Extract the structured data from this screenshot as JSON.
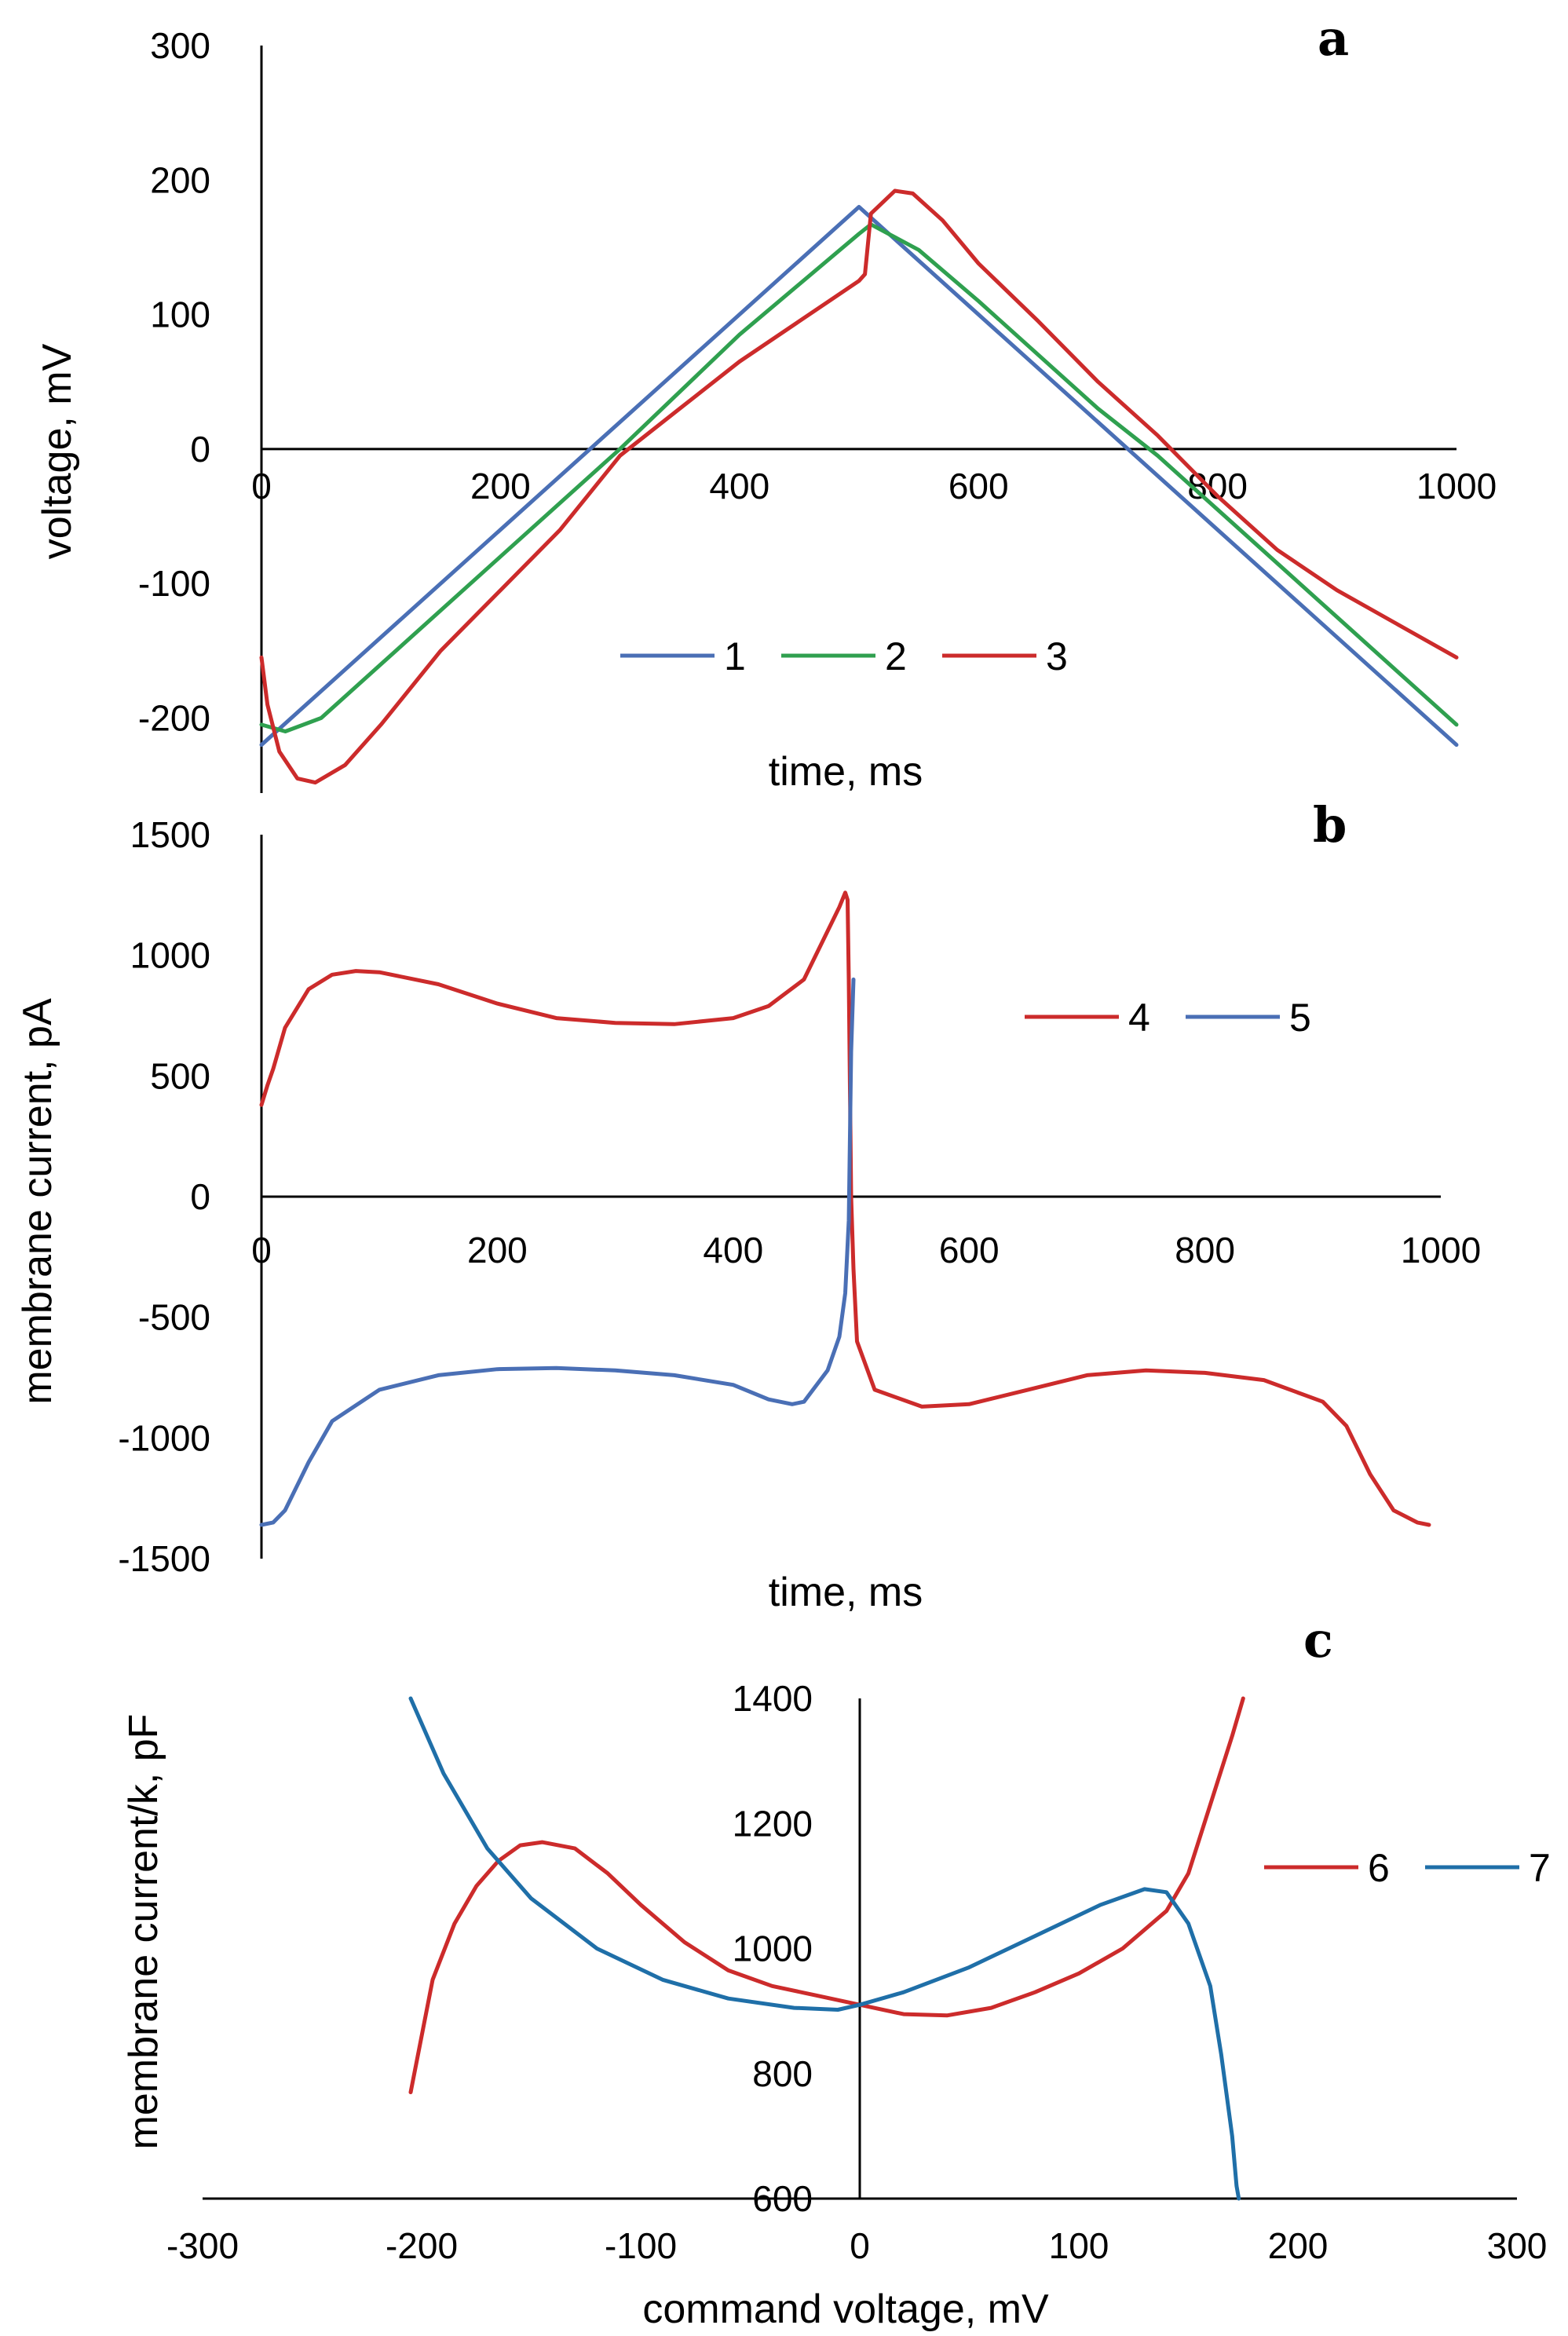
{
  "chart_data": [
    {
      "panel": "a",
      "type": "line",
      "title": "",
      "xlabel": "time, ms",
      "ylabel": "voltage, mV",
      "xlim": [
        0,
        1000
      ],
      "ylim": [
        -250,
        300
      ],
      "xticks": [
        0,
        200,
        400,
        600,
        800,
        1000
      ],
      "yticks": [
        -200,
        -100,
        0,
        100,
        200,
        300
      ],
      "xtick_labels": [
        "0",
        "200",
        "400",
        "600",
        "800",
        "1000"
      ],
      "ytick_labels": [
        "-200",
        "-100",
        "0",
        "100",
        "200",
        "300"
      ],
      "legend": "center",
      "series": [
        {
          "name": "1",
          "color": "#4a6fb5",
          "points": [
            [
              0,
              -220
            ],
            [
              500,
              180
            ],
            [
              1000,
              -220
            ]
          ]
        },
        {
          "name": "2",
          "color": "#2fa04f",
          "points": [
            [
              0,
              -205
            ],
            [
              20,
              -210
            ],
            [
              50,
              -200
            ],
            [
              100,
              -160
            ],
            [
              200,
              -80
            ],
            [
              300,
              0
            ],
            [
              400,
              85
            ],
            [
              500,
              160
            ],
            [
              510,
              167
            ],
            [
              550,
              148
            ],
            [
              600,
              110
            ],
            [
              700,
              30
            ],
            [
              750,
              -5
            ],
            [
              800,
              -45
            ],
            [
              900,
              -125
            ],
            [
              1000,
              -205
            ]
          ]
        },
        {
          "name": "3",
          "color": "#cc2b2b",
          "points": [
            [
              0,
              -155
            ],
            [
              5,
              -190
            ],
            [
              15,
              -225
            ],
            [
              30,
              -245
            ],
            [
              45,
              -248
            ],
            [
              70,
              -235
            ],
            [
              100,
              -205
            ],
            [
              150,
              -150
            ],
            [
              200,
              -105
            ],
            [
              250,
              -60
            ],
            [
              300,
              -5
            ],
            [
              350,
              30
            ],
            [
              400,
              65
            ],
            [
              450,
              95
            ],
            [
              500,
              125
            ],
            [
              505,
              130
            ],
            [
              510,
              175
            ],
            [
              530,
              192
            ],
            [
              545,
              190
            ],
            [
              570,
              170
            ],
            [
              600,
              138
            ],
            [
              650,
              95
            ],
            [
              700,
              50
            ],
            [
              750,
              10
            ],
            [
              800,
              -35
            ],
            [
              850,
              -75
            ],
            [
              900,
              -105
            ],
            [
              950,
              -130
            ],
            [
              1000,
              -155
            ]
          ]
        }
      ]
    },
    {
      "panel": "b",
      "type": "line",
      "title": "",
      "xlabel": "time, ms",
      "ylabel": "membrane current, pA",
      "xlim": [
        0,
        1000
      ],
      "ylim": [
        -1500,
        1500
      ],
      "xticks": [
        0,
        200,
        400,
        600,
        800,
        1000
      ],
      "yticks": [
        -1500,
        -1000,
        -500,
        0,
        500,
        1000,
        1500
      ],
      "xtick_labels": [
        "0",
        "200",
        "400",
        "600",
        "800",
        "1000"
      ],
      "ytick_labels": [
        "-1500",
        "-1000",
        "-500",
        "0",
        "500",
        "1000",
        "1500"
      ],
      "legend": "right",
      "series": [
        {
          "name": "4",
          "color": "#cc2b2b",
          "points": [
            [
              0,
              380
            ],
            [
              5,
              460
            ],
            [
              10,
              530
            ],
            [
              20,
              700
            ],
            [
              40,
              860
            ],
            [
              60,
              920
            ],
            [
              80,
              935
            ],
            [
              100,
              930
            ],
            [
              150,
              880
            ],
            [
              200,
              800
            ],
            [
              250,
              740
            ],
            [
              300,
              720
            ],
            [
              350,
              715
            ],
            [
              400,
              740
            ],
            [
              430,
              790
            ],
            [
              460,
              900
            ],
            [
              480,
              1100
            ],
            [
              490,
              1200
            ],
            [
              495,
              1260
            ],
            [
              497,
              1230
            ],
            [
              498,
              900
            ],
            [
              500,
              0
            ],
            [
              502,
              -300
            ],
            [
              505,
              -600
            ],
            [
              520,
              -800
            ],
            [
              560,
              -870
            ],
            [
              600,
              -860
            ],
            [
              650,
              -800
            ],
            [
              700,
              -740
            ],
            [
              750,
              -720
            ],
            [
              800,
              -730
            ],
            [
              850,
              -760
            ],
            [
              900,
              -850
            ],
            [
              920,
              -950
            ],
            [
              940,
              -1150
            ],
            [
              960,
              -1300
            ],
            [
              980,
              -1350
            ],
            [
              990,
              -1360
            ]
          ]
        },
        {
          "name": "5",
          "color": "#4a6fb5",
          "points": [
            [
              0,
              -1360
            ],
            [
              10,
              -1350
            ],
            [
              20,
              -1300
            ],
            [
              40,
              -1100
            ],
            [
              60,
              -930
            ],
            [
              100,
              -800
            ],
            [
              150,
              -740
            ],
            [
              200,
              -715
            ],
            [
              250,
              -710
            ],
            [
              300,
              -720
            ],
            [
              350,
              -740
            ],
            [
              400,
              -780
            ],
            [
              430,
              -840
            ],
            [
              450,
              -860
            ],
            [
              460,
              -850
            ],
            [
              480,
              -720
            ],
            [
              490,
              -580
            ],
            [
              495,
              -400
            ],
            [
              498,
              -100
            ],
            [
              500,
              600
            ],
            [
              502,
              900
            ]
          ]
        }
      ]
    },
    {
      "panel": "c",
      "type": "line",
      "title": "",
      "xlabel": "command voltage, mV",
      "ylabel": "membrane current/k, pF",
      "xlim": [
        -300,
        300
      ],
      "ylim": [
        600,
        1400
      ],
      "xticks": [
        -300,
        -200,
        -100,
        0,
        100,
        200,
        300
      ],
      "yticks": [
        600,
        800,
        1000,
        1200,
        1400
      ],
      "xtick_labels": [
        "-300",
        "-200",
        "-100",
        "0",
        "100",
        "200",
        "300"
      ],
      "ytick_labels": [
        "600",
        "800",
        "1000",
        "1200",
        "1400"
      ],
      "legend": "right",
      "series": [
        {
          "name": "6",
          "color": "#cc2b2b",
          "points": [
            [
              -205,
              770
            ],
            [
              -200,
              860
            ],
            [
              -195,
              950
            ],
            [
              -185,
              1040
            ],
            [
              -175,
              1100
            ],
            [
              -165,
              1140
            ],
            [
              -155,
              1165
            ],
            [
              -145,
              1170
            ],
            [
              -130,
              1160
            ],
            [
              -115,
              1120
            ],
            [
              -100,
              1070
            ],
            [
              -80,
              1010
            ],
            [
              -60,
              965
            ],
            [
              -40,
              940
            ],
            [
              -20,
              925
            ],
            [
              0,
              910
            ],
            [
              20,
              895
            ],
            [
              40,
              893
            ],
            [
              60,
              905
            ],
            [
              80,
              930
            ],
            [
              100,
              960
            ],
            [
              120,
              1000
            ],
            [
              140,
              1060
            ],
            [
              150,
              1120
            ],
            [
              160,
              1230
            ],
            [
              170,
              1340
            ],
            [
              175,
              1400
            ]
          ]
        },
        {
          "name": "7",
          "color": "#1f6fa8",
          "points": [
            [
              -205,
              1400
            ],
            [
              -190,
              1280
            ],
            [
              -170,
              1160
            ],
            [
              -150,
              1080
            ],
            [
              -120,
              1000
            ],
            [
              -90,
              950
            ],
            [
              -60,
              920
            ],
            [
              -30,
              905
            ],
            [
              -10,
              902
            ],
            [
              0,
              910
            ],
            [
              20,
              930
            ],
            [
              50,
              970
            ],
            [
              80,
              1020
            ],
            [
              110,
              1070
            ],
            [
              130,
              1095
            ],
            [
              140,
              1090
            ],
            [
              150,
              1040
            ],
            [
              160,
              940
            ],
            [
              165,
              830
            ],
            [
              170,
              700
            ],
            [
              172,
              620
            ],
            [
              173,
              600
            ]
          ]
        }
      ]
    }
  ]
}
